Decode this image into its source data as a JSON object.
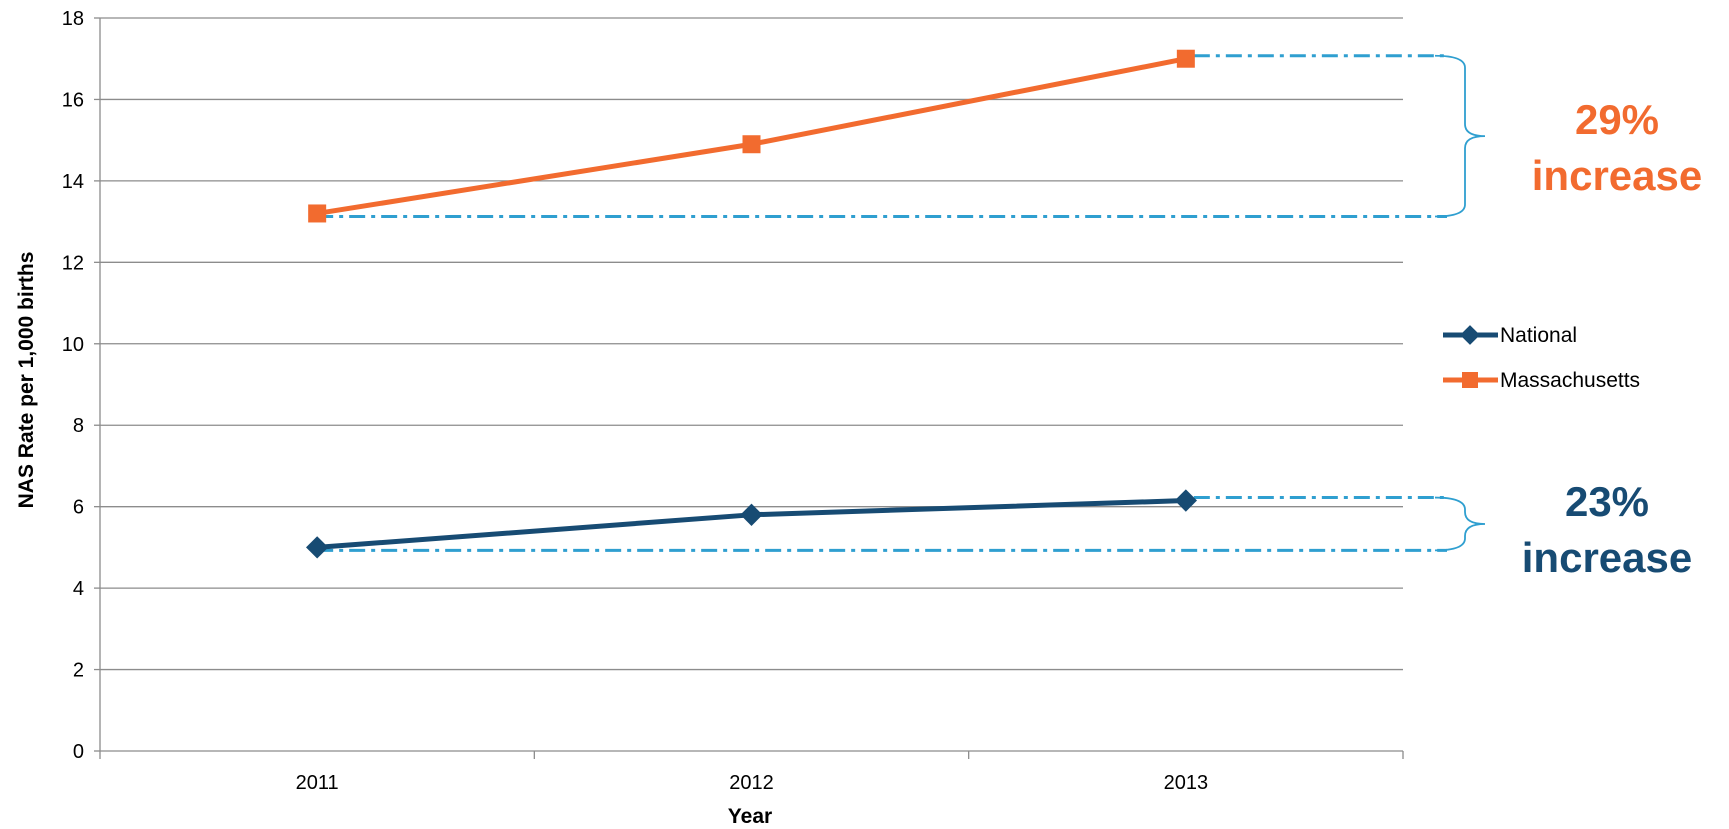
{
  "chart_data": {
    "type": "line",
    "title": "",
    "xlabel": "Year",
    "ylabel": "NAS Rate per 1,000 births",
    "categories": [
      "2011",
      "2012",
      "2013"
    ],
    "ylim": [
      0,
      18
    ],
    "yticks": [
      "0",
      "2",
      "4",
      "6",
      "8",
      "10",
      "12",
      "14",
      "16",
      "18"
    ],
    "grid": true,
    "legend_position": "right",
    "series": [
      {
        "name": "National",
        "values": [
          5.0,
          5.8,
          6.15
        ],
        "color": "#174b73",
        "marker": "diamond"
      },
      {
        "name": "Massachusetts",
        "values": [
          13.2,
          14.9,
          17.0
        ],
        "color": "#f26b2f",
        "marker": "square"
      }
    ],
    "annotations": [
      {
        "series": "Massachusetts",
        "line1": "29%",
        "line2": "increase",
        "color": "#f26b2f"
      },
      {
        "series": "National",
        "line1": "23%",
        "line2": "increase",
        "color": "#174b73"
      }
    ],
    "guide_color": "#2f9fd0"
  }
}
